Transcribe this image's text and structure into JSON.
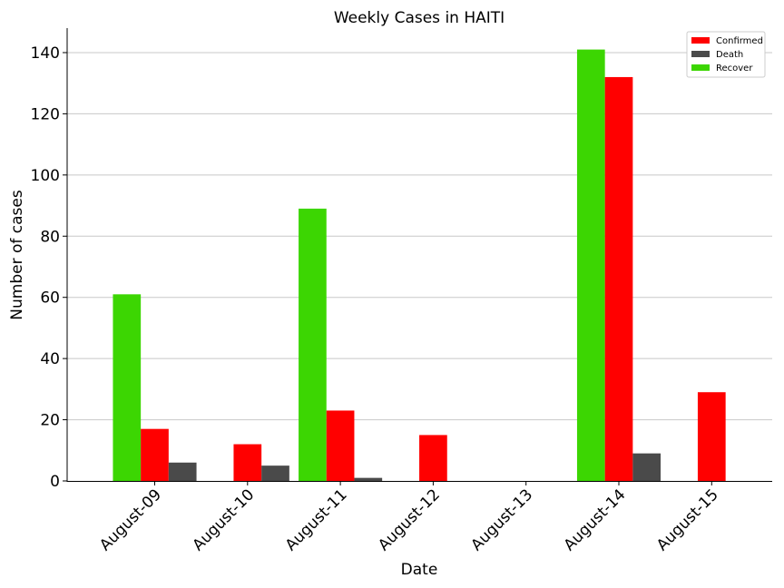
{
  "chart_data": {
    "type": "bar",
    "title": "Weekly Cases in HAITI",
    "xlabel": "Date",
    "ylabel": "Number of cases",
    "categories": [
      "August-09",
      "August-10",
      "August-11",
      "August-12",
      "August-13",
      "August-14",
      "August-15"
    ],
    "series": [
      {
        "name": "Recover",
        "color": "#3cd602",
        "values": [
          61,
          0,
          89,
          0,
          0,
          141,
          0
        ]
      },
      {
        "name": "Confirmed",
        "color": "#ff0000",
        "values": [
          17,
          12,
          23,
          15,
          0,
          132,
          29
        ]
      },
      {
        "name": "Death",
        "color": "#4a4a4a",
        "values": [
          6,
          5,
          1,
          0,
          0,
          9,
          0
        ]
      }
    ],
    "legend_order": [
      "Confirmed",
      "Death",
      "Recover"
    ],
    "legend_position": "top-right",
    "ylim": [
      0,
      148
    ],
    "yticks": [
      0,
      20,
      40,
      60,
      80,
      100,
      120,
      140
    ],
    "grid": "horizontal"
  }
}
